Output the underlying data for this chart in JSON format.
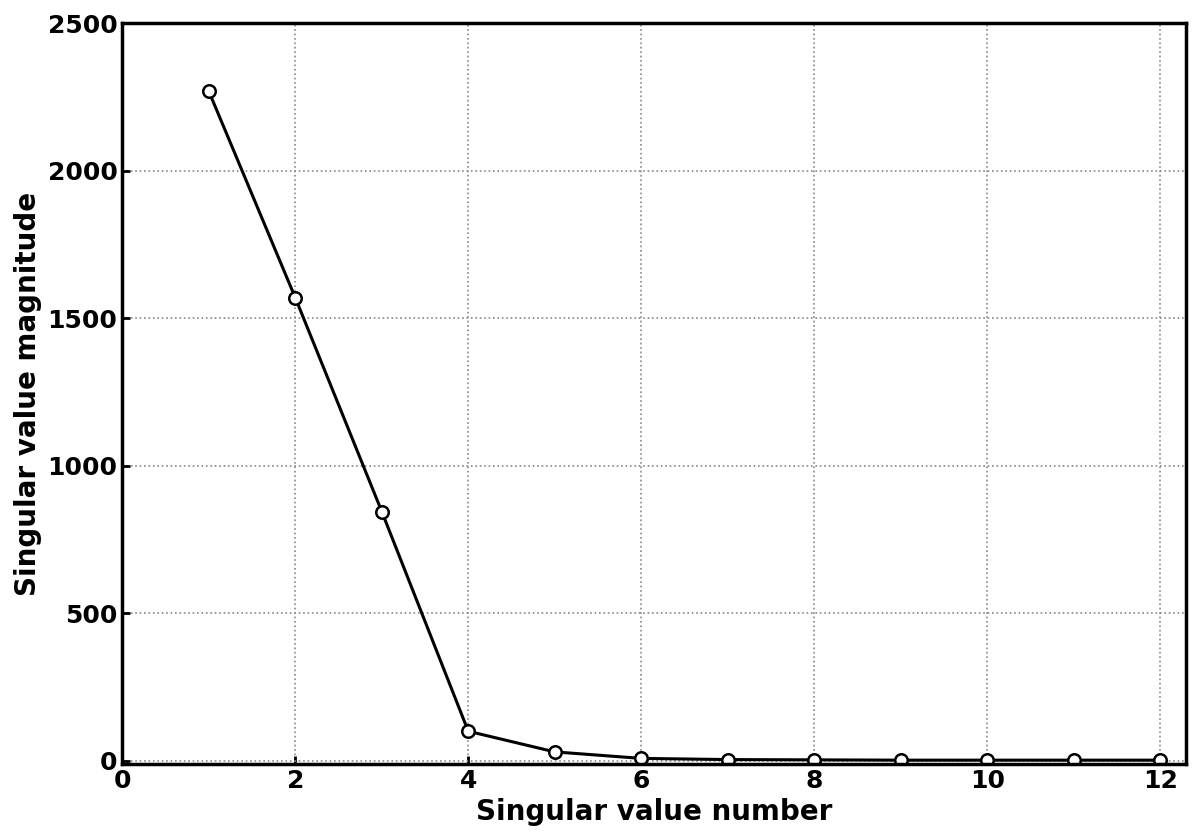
{
  "x": [
    1,
    2,
    3,
    4,
    5,
    6,
    7,
    8,
    9,
    10,
    11,
    12
  ],
  "y": [
    2270,
    1570,
    845,
    100,
    30,
    8,
    4,
    3,
    2,
    2,
    2,
    2
  ],
  "xlabel": "Singular value number",
  "ylabel": "Singular value magnitude",
  "xlim": [
    0,
    12.3
  ],
  "ylim": [
    -10,
    2500
  ],
  "xticks": [
    0,
    2,
    4,
    6,
    8,
    10,
    12
  ],
  "yticks": [
    0,
    500,
    1000,
    1500,
    2000,
    2500
  ],
  "line_color": "#000000",
  "marker": "o",
  "marker_facecolor": "white",
  "marker_edgecolor": "#000000",
  "marker_size": 9,
  "linewidth": 2.2,
  "grid_color": "#888888",
  "grid_linestyle": ":",
  "grid_linewidth": 1.2,
  "background_color": "#ffffff",
  "xlabel_fontsize": 20,
  "ylabel_fontsize": 20,
  "tick_fontsize": 18,
  "font_family": "DejaVu Sans",
  "font_weight": "bold",
  "spine_linewidth": 2.5
}
